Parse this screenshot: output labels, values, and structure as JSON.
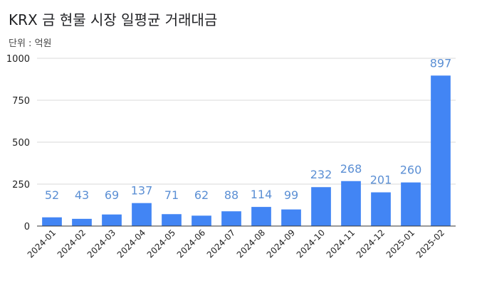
{
  "title": "KRX 금 현물 시장 일평균 거래대금",
  "subtitle": "단위 : 억원",
  "colors": {
    "bar": "#4285f4",
    "label": "#5b8fd4",
    "grid": "#d9d9d9",
    "axis": "#333333"
  },
  "chart_data": {
    "type": "bar",
    "title": "KRX 금 현물 시장 일평균 거래대금",
    "unit": "단위 : 억원",
    "categories": [
      "2024-01",
      "2024-02",
      "2024-03",
      "2024-04",
      "2024-05",
      "2024-06",
      "2024-07",
      "2024-08",
      "2024-09",
      "2024-10",
      "2024-11",
      "2024-12",
      "2025-01",
      "2025-02"
    ],
    "values": [
      52,
      43,
      69,
      137,
      71,
      62,
      88,
      114,
      99,
      232,
      268,
      201,
      260,
      897
    ],
    "yticks": [
      0,
      250,
      500,
      750,
      1000
    ],
    "ylim": [
      0,
      1000
    ],
    "grid": true
  }
}
